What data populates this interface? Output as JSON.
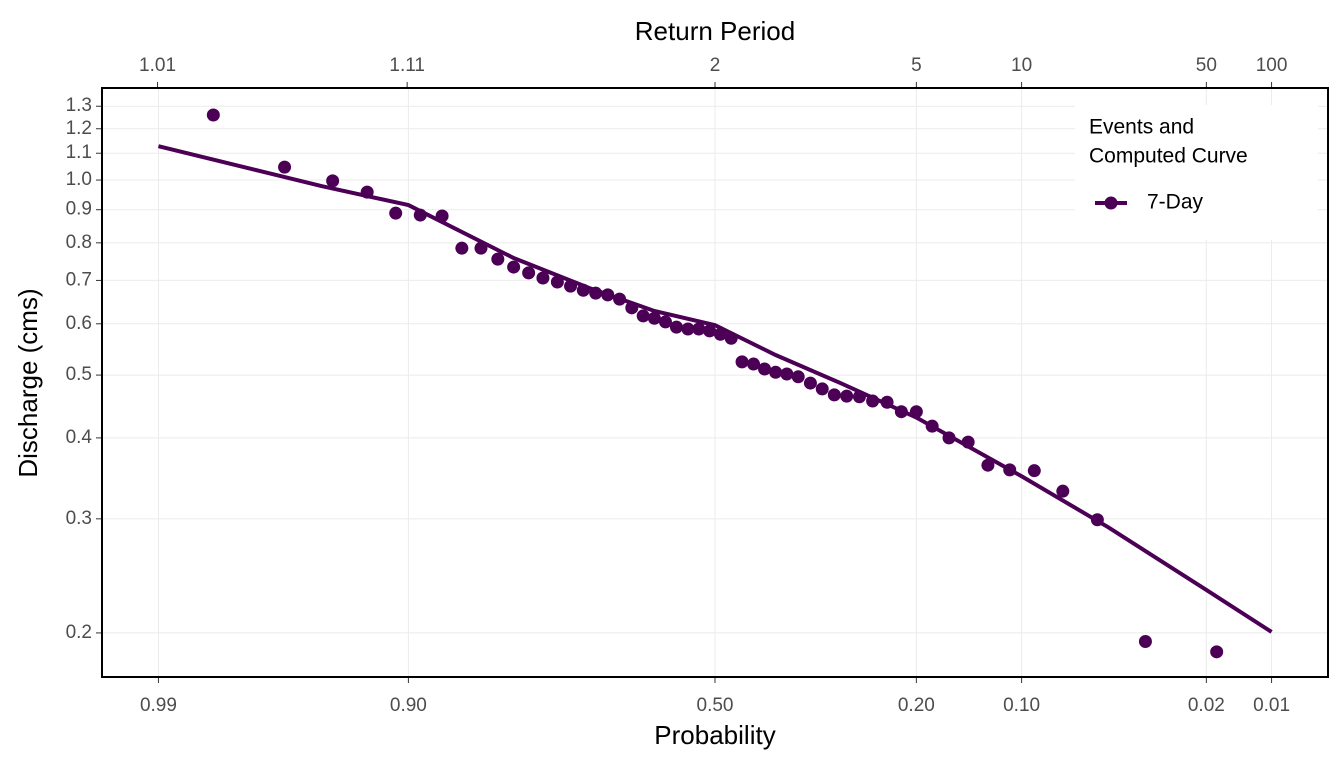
{
  "chart_data": {
    "type": "probability",
    "title": "Return Period",
    "x_label": "Probability",
    "y_label": "Discharge (cms)",
    "legend_title": [
      "Events and",
      "Computed Curve"
    ],
    "legend_position": "top-right",
    "grid": true,
    "y_log": true,
    "x_scale": "normal-probability",
    "xlim": [
      0.9948,
      0.0052
    ],
    "xticks": [
      0.99,
      {
        "value": 0.9,
        "label": "0.90"
      },
      {
        "value": 0.5,
        "label": "0.50"
      },
      {
        "value": 0.2,
        "label": "0.20"
      },
      {
        "value": 0.1,
        "label": "0.10"
      },
      0.02,
      0.01
    ],
    "x2ticks": [
      1.01,
      1.11,
      2,
      5,
      10,
      50,
      100
    ],
    "ylim": [
      0.171,
      1.387
    ],
    "yticks": [
      0.2,
      0.3,
      0.4,
      0.5,
      0.6,
      0.7,
      0.8,
      0.9,
      {
        "value": 1,
        "label": "1.0"
      },
      1.1,
      1.2,
      1.3
    ],
    "series": [
      {
        "name": "7-Day",
        "type": "scatter",
        "color": "#4b0055",
        "x": [
          0.982,
          0.964,
          0.945,
          0.927,
          0.909,
          0.891,
          0.873,
          0.855,
          0.836,
          0.818,
          0.8,
          0.782,
          0.764,
          0.745,
          0.727,
          0.709,
          0.691,
          0.673,
          0.655,
          0.636,
          0.618,
          0.6,
          0.582,
          0.564,
          0.545,
          0.527,
          0.509,
          0.491,
          0.473,
          0.455,
          0.436,
          0.418,
          0.4,
          0.382,
          0.364,
          0.345,
          0.327,
          0.309,
          0.291,
          0.273,
          0.255,
          0.236,
          0.218,
          0.2,
          0.182,
          0.164,
          0.145,
          0.127,
          0.109,
          0.091,
          0.073,
          0.055,
          0.036,
          0.018
        ],
        "values": [
          1.26,
          1.047,
          0.997,
          0.958,
          0.889,
          0.883,
          0.88,
          0.785,
          0.785,
          0.755,
          0.734,
          0.719,
          0.706,
          0.696,
          0.686,
          0.676,
          0.669,
          0.665,
          0.655,
          0.635,
          0.617,
          0.612,
          0.604,
          0.593,
          0.589,
          0.589,
          0.585,
          0.578,
          0.57,
          0.524,
          0.52,
          0.511,
          0.505,
          0.502,
          0.497,
          0.486,
          0.476,
          0.466,
          0.464,
          0.463,
          0.456,
          0.454,
          0.439,
          0.439,
          0.417,
          0.4,
          0.394,
          0.363,
          0.357,
          0.356,
          0.331,
          0.299,
          0.194,
          0.187
        ]
      },
      {
        "type": "line",
        "color": "#4b0055",
        "x": [
          0.99,
          0.95,
          0.9,
          0.8,
          0.7,
          0.6,
          0.5,
          0.4,
          0.3,
          0.2,
          0.1,
          0.05,
          0.02,
          0.01
        ],
        "values": [
          1.128,
          0.979,
          0.915,
          0.758,
          0.681,
          0.628,
          0.597,
          0.537,
          0.486,
          0.43,
          0.349,
          0.291,
          0.233,
          0.2007
        ]
      }
    ]
  }
}
